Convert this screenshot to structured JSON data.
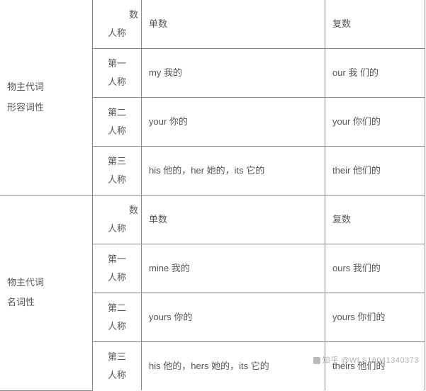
{
  "table": {
    "border_color": "#888888",
    "text_color": "#555555",
    "font_size": 13,
    "sections": [
      {
        "category_line1": "物主代词",
        "category_line2": "形容词性",
        "rows": [
          {
            "person_top": "数",
            "person_bottom": "人称",
            "singular": "单数",
            "plural": "复数"
          },
          {
            "person_top": "第一",
            "person_bottom": "人称",
            "singular": "my 我的",
            "plural": "our  我 们的"
          },
          {
            "person_top": "第二",
            "person_bottom": "人称",
            "singular": "your 你的",
            "plural": "your 你们的"
          },
          {
            "person_top": "第三",
            "person_bottom": "人称",
            "singular": "his 他的，her 她的，its 它的",
            "plural": "their 他们的"
          }
        ]
      },
      {
        "category_line1": "物主代词",
        "category_line2": "名词性",
        "rows": [
          {
            "person_top": "数",
            "person_bottom": "人称",
            "singular": "单数",
            "plural": "复数"
          },
          {
            "person_top": "第一",
            "person_bottom": "人称",
            "singular": "mine 我的",
            "plural": "ours  我们的"
          },
          {
            "person_top": "第二",
            "person_bottom": "人称",
            "singular": "yours 你的",
            "plural": "yours   你们的"
          },
          {
            "person_top": "第三",
            "person_bottom": "人称",
            "singular": "his 他的，hers 她的，its 它的",
            "plural": "theirs   他们的"
          }
        ]
      }
    ]
  },
  "watermark": {
    "label": "知乎",
    "handle": "@WLS18041340373"
  }
}
